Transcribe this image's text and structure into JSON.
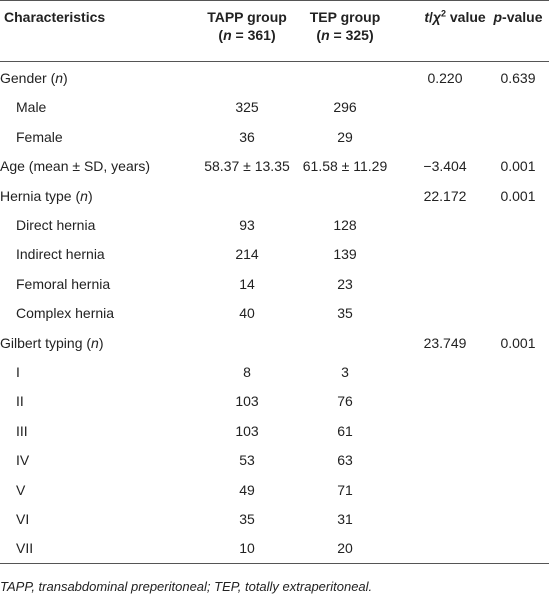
{
  "table": {
    "header": [
      {
        "lines": [
          [
            {
              "text": "Characteristics"
            }
          ]
        ]
      },
      {
        "lines": [
          [
            {
              "text": "TAPP group"
            }
          ],
          [
            {
              "text": "("
            },
            {
              "text": "n",
              "style": "italic"
            },
            {
              "text": " = 361)"
            }
          ]
        ]
      },
      {
        "lines": [
          [
            {
              "text": "TEP group"
            }
          ],
          [
            {
              "text": "("
            },
            {
              "text": "n",
              "style": "italic"
            },
            {
              "text": " = 325)"
            }
          ]
        ]
      },
      {
        "lines": [
          [
            {
              "text": "t",
              "style": "italic"
            },
            {
              "text": "/"
            },
            {
              "text": "χ",
              "style": "italic"
            },
            {
              "text": "2",
              "style": "sup"
            },
            {
              "text": " value"
            }
          ]
        ]
      },
      {
        "lines": [
          [
            {
              "text": "p",
              "style": "italic"
            },
            {
              "text": "-value"
            }
          ]
        ]
      }
    ],
    "rows": [
      {
        "label": [
          {
            "text": "Gender ("
          },
          {
            "text": "n",
            "style": "italic"
          },
          {
            "text": ")"
          }
        ],
        "indent": false,
        "cells": [
          null,
          null,
          "0.220",
          "0.639"
        ]
      },
      {
        "label": [
          {
            "text": "Male"
          }
        ],
        "indent": true,
        "cells": [
          "325",
          "296",
          null,
          null
        ]
      },
      {
        "label": [
          {
            "text": "Female"
          }
        ],
        "indent": true,
        "cells": [
          "36",
          "29",
          null,
          null
        ]
      },
      {
        "label": [
          {
            "text": "Age (mean ± SD, years)"
          }
        ],
        "indent": false,
        "cells": [
          "58.37 ± 13.35",
          "61.58 ± 11.29",
          "−3.404",
          "0.001"
        ]
      },
      {
        "label": [
          {
            "text": "Hernia type ("
          },
          {
            "text": "n",
            "style": "italic"
          },
          {
            "text": ")"
          }
        ],
        "indent": false,
        "cells": [
          null,
          null,
          "22.172",
          "0.001"
        ]
      },
      {
        "label": [
          {
            "text": "Direct hernia"
          }
        ],
        "indent": true,
        "cells": [
          "93",
          "128",
          null,
          null
        ]
      },
      {
        "label": [
          {
            "text": "Indirect hernia"
          }
        ],
        "indent": true,
        "cells": [
          "214",
          "139",
          null,
          null
        ]
      },
      {
        "label": [
          {
            "text": "Femoral hernia"
          }
        ],
        "indent": true,
        "cells": [
          "14",
          "23",
          null,
          null
        ]
      },
      {
        "label": [
          {
            "text": "Complex hernia"
          }
        ],
        "indent": true,
        "cells": [
          "40",
          "35",
          null,
          null
        ]
      },
      {
        "label": [
          {
            "text": "Gilbert typing ("
          },
          {
            "text": "n",
            "style": "italic"
          },
          {
            "text": ")"
          }
        ],
        "indent": false,
        "cells": [
          null,
          null,
          "23.749",
          "0.001"
        ]
      },
      {
        "label": [
          {
            "text": "I"
          }
        ],
        "indent": true,
        "cells": [
          "8",
          "3",
          null,
          null
        ]
      },
      {
        "label": [
          {
            "text": "II"
          }
        ],
        "indent": true,
        "cells": [
          "103",
          "76",
          null,
          null
        ]
      },
      {
        "label": [
          {
            "text": "III"
          }
        ],
        "indent": true,
        "cells": [
          "103",
          "61",
          null,
          null
        ]
      },
      {
        "label": [
          {
            "text": "IV"
          }
        ],
        "indent": true,
        "cells": [
          "53",
          "63",
          null,
          null
        ]
      },
      {
        "label": [
          {
            "text": "V"
          }
        ],
        "indent": true,
        "cells": [
          "49",
          "71",
          null,
          null
        ]
      },
      {
        "label": [
          {
            "text": "VI"
          }
        ],
        "indent": true,
        "cells": [
          "35",
          "31",
          null,
          null
        ]
      },
      {
        "label": [
          {
            "text": "VII"
          }
        ],
        "indent": true,
        "cells": [
          "10",
          "20",
          null,
          null
        ]
      }
    ],
    "footnote": "TAPP, transabdominal preperitoneal; TEP, totally extraperitoneal."
  }
}
